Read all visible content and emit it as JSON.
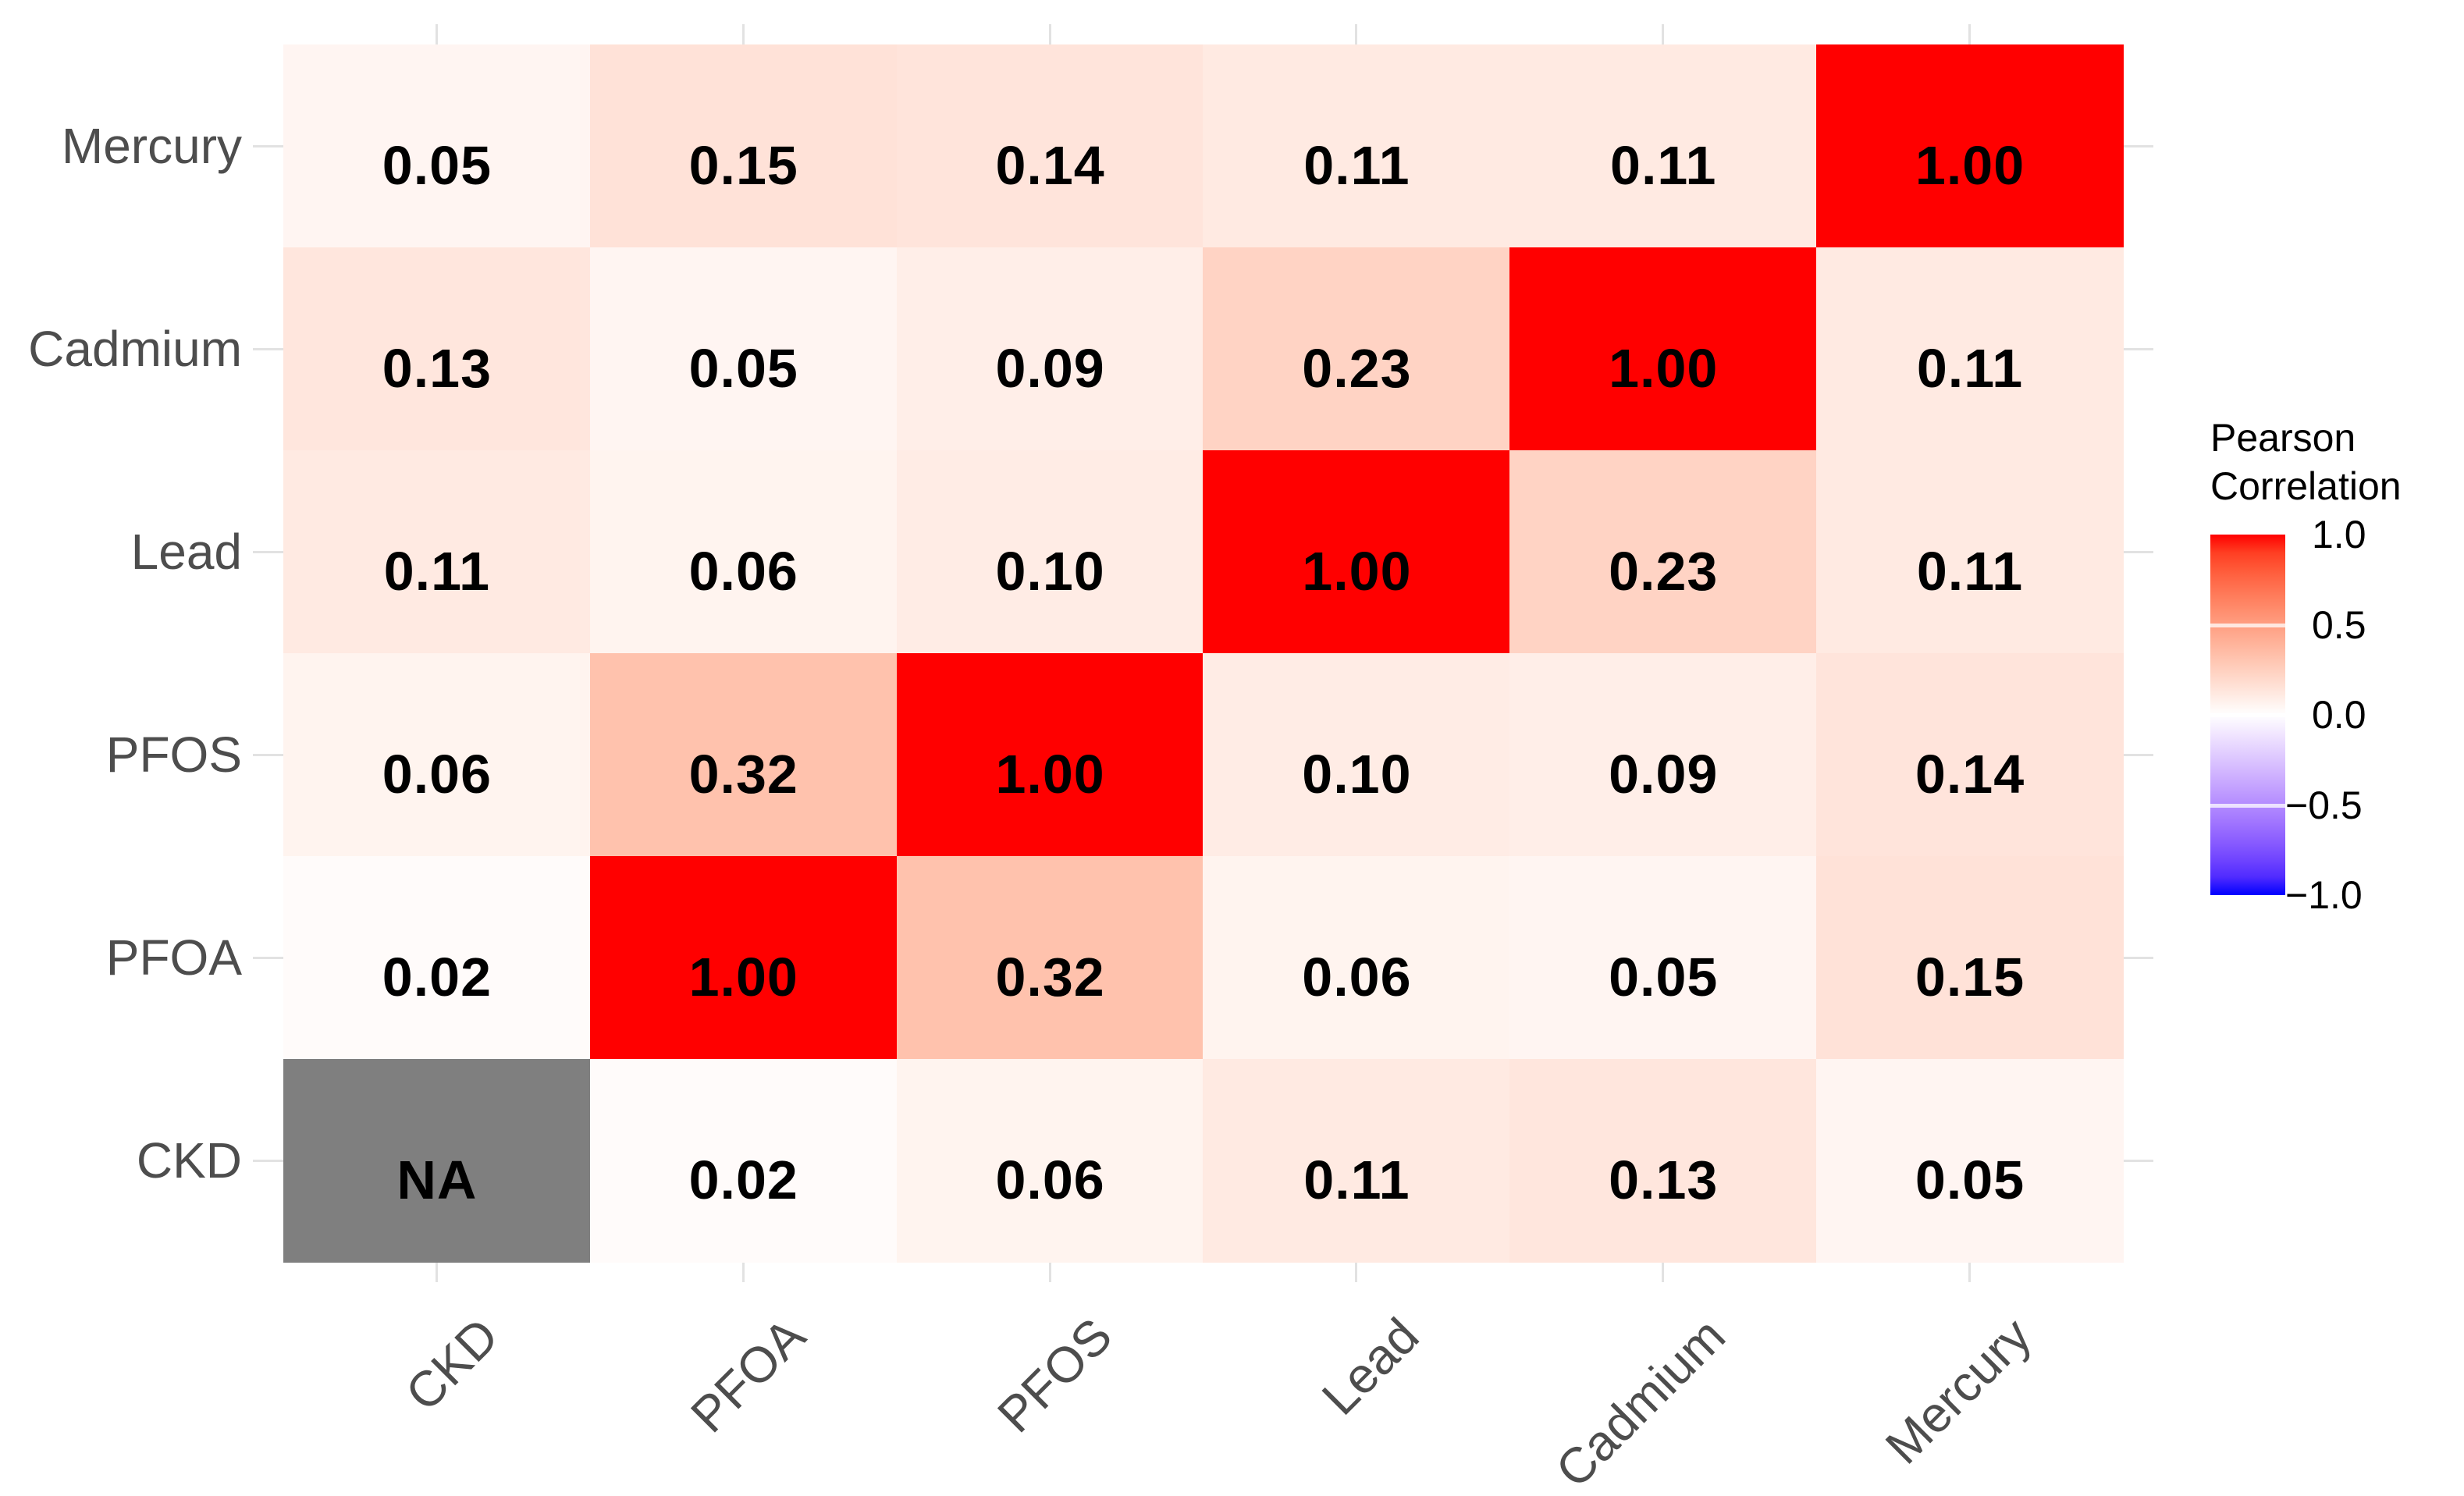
{
  "chart_data": {
    "type": "heatmap",
    "title": "",
    "x_categories": [
      "CKD",
      "PFOA",
      "PFOS",
      "Lead",
      "Cadmium",
      "Mercury"
    ],
    "y_categories_top_to_bottom": [
      "Mercury",
      "Cadmium",
      "Lead",
      "PFOS",
      "PFOA",
      "CKD"
    ],
    "rows": [
      {
        "label": "Mercury",
        "values": [
          0.05,
          0.15,
          0.14,
          0.11,
          0.11,
          1.0
        ],
        "cell_labels": [
          "0.05",
          "0.15",
          "0.14",
          "0.11",
          "0.11",
          "1.00"
        ]
      },
      {
        "label": "Cadmium",
        "values": [
          0.13,
          0.05,
          0.09,
          0.23,
          1.0,
          0.11
        ],
        "cell_labels": [
          "0.13",
          "0.05",
          "0.09",
          "0.23",
          "1.00",
          "0.11"
        ]
      },
      {
        "label": "Lead",
        "values": [
          0.11,
          0.06,
          0.1,
          1.0,
          0.23,
          0.11
        ],
        "cell_labels": [
          "0.11",
          "0.06",
          "0.10",
          "1.00",
          "0.23",
          "0.11"
        ]
      },
      {
        "label": "PFOS",
        "values": [
          0.06,
          0.32,
          1.0,
          0.1,
          0.09,
          0.14
        ],
        "cell_labels": [
          "0.06",
          "0.32",
          "1.00",
          "0.10",
          "0.09",
          "0.14"
        ]
      },
      {
        "label": "PFOA",
        "values": [
          0.02,
          1.0,
          0.32,
          0.06,
          0.05,
          0.15
        ],
        "cell_labels": [
          "0.02",
          "1.00",
          "0.32",
          "0.06",
          "0.05",
          "0.15"
        ]
      },
      {
        "label": "CKD",
        "values": [
          null,
          0.02,
          0.06,
          0.11,
          0.13,
          0.05
        ],
        "cell_labels": [
          "NA",
          "0.02",
          "0.06",
          "0.11",
          "0.13",
          "0.05"
        ]
      }
    ],
    "legend": {
      "title": "Pearson\nCorrelation",
      "ticks": [
        {
          "label": "1.0",
          "value": 1.0
        },
        {
          "label": "0.5",
          "value": 0.5
        },
        {
          "label": "0.0",
          "value": 0.0
        },
        {
          "label": "−0.5",
          "value": -0.5
        },
        {
          "label": "−1.0",
          "value": -1.0
        }
      ]
    },
    "scale_domain": [
      -1,
      1
    ],
    "colors": {
      "high": "#FF0000",
      "mid": "#FFFFFF",
      "low": "#0000FF",
      "na": "#7F7F7F",
      "axis_text": "#4D4D4D",
      "value_text": "#000000",
      "gridline": "#E2E2E2"
    },
    "layout_hints": {
      "grid": "stubs-outside-tiles",
      "legend_position": "right"
    }
  }
}
